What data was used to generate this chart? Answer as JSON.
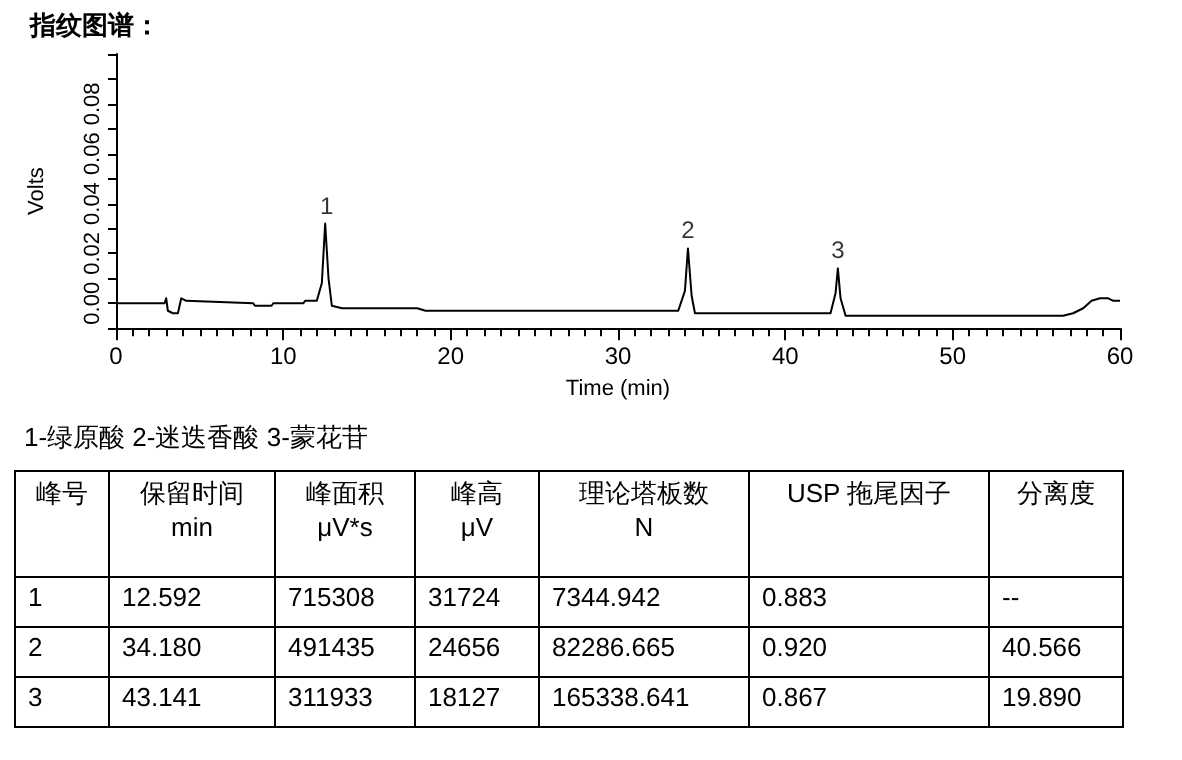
{
  "chart_data": {
    "type": "line",
    "title": "指纹图谱：",
    "xlabel": "Time (min)",
    "ylabel": "Volts",
    "x": [
      0,
      2.9,
      3.0,
      3.1,
      3.4,
      3.7,
      3.9,
      4.2,
      8.2,
      8.3,
      9.3,
      9.4,
      11.2,
      11.3,
      12.0,
      12.3,
      12.5,
      12.7,
      12.9,
      13.5,
      14,
      18,
      18.5,
      24,
      24.5,
      33.6,
      34.0,
      34.18,
      34.4,
      34.6,
      42.7,
      43.0,
      43.14,
      43.3,
      43.6,
      55.3,
      56.6,
      57.2,
      57.8,
      58.3,
      58.8,
      59.3,
      59.6,
      60
    ],
    "series": [
      {
        "color": "#000000",
        "values": [
          0,
          0,
          0.002,
          -0.003,
          -0.004,
          -0.004,
          0.002,
          0.001,
          0,
          -0.001,
          -0.001,
          0,
          0,
          0.001,
          0.001,
          0.008,
          0.032,
          0.01,
          -0.001,
          -0.002,
          -0.002,
          -0.002,
          -0.003,
          -0.003,
          -0.003,
          -0.003,
          0.005,
          0.022,
          0.003,
          -0.004,
          -0.004,
          0.004,
          0.014,
          0.002,
          -0.005,
          -0.005,
          -0.005,
          -0.004,
          -0.002,
          0.001,
          0.002,
          0.002,
          0.001,
          0.001
        ]
      }
    ],
    "xlim": [
      0,
      60
    ],
    "xticks": [
      0,
      10,
      20,
      30,
      40,
      50,
      60
    ],
    "ylim": [
      -0.01,
      0.1
    ],
    "yticks": [
      {
        "value": -0.01,
        "label": null
      },
      {
        "value": 0,
        "label": "0.00"
      },
      {
        "value": 0.01,
        "label": null
      },
      {
        "value": 0.02,
        "label": "0.02"
      },
      {
        "value": 0.03,
        "label": null
      },
      {
        "value": 0.04,
        "label": "0.04"
      },
      {
        "value": 0.05,
        "label": null
      },
      {
        "value": 0.06,
        "label": "0.06"
      },
      {
        "value": 0.07,
        "label": null
      },
      {
        "value": 0.08,
        "label": "0.08"
      },
      {
        "value": 0.09,
        "label": null
      },
      {
        "value": 0.1,
        "label": null
      }
    ],
    "grid": false,
    "marker": "none",
    "line_style": "solid",
    "annotations": [
      {
        "text": "1",
        "x": 12.592,
        "y": 0.032
      },
      {
        "text": "2",
        "x": 34.18,
        "y": 0.022
      },
      {
        "text": "3",
        "x": 43.141,
        "y": 0.014
      },
      "1-绿原酸 2-迷迭香酸 3-蒙花苷",
      "峰号",
      "保留时间\nmin",
      "峰面积\nμV*s",
      "峰高\nμV",
      "理论塔板数\nN",
      "USP 拖尾因子",
      "分离度",
      "1",
      "12.592",
      "715308",
      "31724",
      "7344.942",
      "0.883",
      "--",
      "2",
      "34.180",
      "491435",
      "24656",
      "82286.665",
      "0.920",
      "40.566",
      "3",
      "43.141",
      "311933",
      "18127",
      "165338.641",
      "0.867",
      "19.890"
    ]
  }
}
